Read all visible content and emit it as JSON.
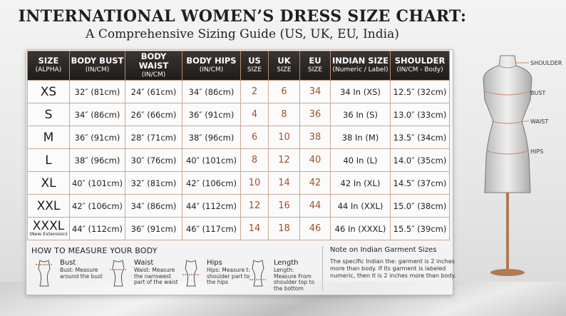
{
  "header": {
    "title": "INTERNATIONAL WOMEN’S DRESS SIZE CHART:",
    "subtitle": "A Comprehensive Sizing Guide (US, UK, EU, India)"
  },
  "table": {
    "headers": [
      [
        "SIZE",
        "(ALPHA)"
      ],
      [
        "BODY BUST",
        "(IN/CM)"
      ],
      [
        "BODY WAIST",
        "(IN/CM)"
      ],
      [
        "BODY HIPS",
        "(IN/CM)"
      ],
      [
        "US",
        "SIZE"
      ],
      [
        "UK",
        "SIZE"
      ],
      [
        "EU",
        "SIZE"
      ],
      [
        "INDIAN SIZE",
        "(Numeric / Label)"
      ],
      [
        "SHOULDER",
        "(IN/CM - Body)"
      ]
    ],
    "rows": [
      [
        "XS",
        "32″ (81cm)",
        "24″ (61cm)",
        "34″ (86cm)",
        "2",
        "6",
        "34",
        "34 In (XS)",
        "12.5″ (32cm)"
      ],
      [
        "S",
        "34″ (86cm)",
        "26″ (66cm)",
        "36″ (91cm)",
        "4",
        "8",
        "36",
        "36 In (S)",
        "13.0″ (33cm)"
      ],
      [
        "M",
        "36″ (91cm)",
        "28″ (71cm)",
        "38″ (96cm)",
        "6",
        "10",
        "38",
        "38 In (M)",
        "13.5″ (34cm)"
      ],
      [
        "L",
        "38″ (96cm)",
        "30″ (76cm)",
        "40″ (101cm)",
        "8",
        "12",
        "40",
        "40 In (L)",
        "14.0″ (35cm)"
      ],
      [
        "XL",
        "40″ (101cm)",
        "32″ (81cm)",
        "42″ (106cm)",
        "10",
        "14",
        "42",
        "42 In (XL)",
        "14.5″ (37cm)"
      ],
      [
        "XXL",
        "42″ (106cm)",
        "34″ (86cm)",
        "44″ (112cm)",
        "12",
        "16",
        "44",
        "44 In (XXL)",
        "15.0″ (38cm)"
      ],
      [
        {
          "text": "XXXL",
          "note": "(New Extension)"
        },
        "44″ (112cm)",
        "36″ (91cm)",
        "46″ (117cm)",
        "14",
        "18",
        "46",
        "46 In (XXXL)",
        "15.5″ (39cm)"
      ]
    ]
  },
  "measure": {
    "title": "HOW TO MEASURE YOUR BODY",
    "items": [
      {
        "name": "Bust",
        "desc": "Bust: Measure around the bust"
      },
      {
        "name": "Waist",
        "desc": "Waist: Measure the narrowest part of the waist"
      },
      {
        "name": "Hips",
        "desc": "Hips: Measure t: shoulder part to the hips"
      },
      {
        "name": "Length",
        "desc": "Length: Measure From shoulder top to the bottom"
      }
    ]
  },
  "note": {
    "title": "Note on Indian Garment Sizes",
    "text": "The specific Indian the: garment is 2 inches more than body. If its garment is labeled numeric, then it is 2 inches more than body."
  },
  "mannequin": {
    "labels": [
      "SHOULDER",
      "BUST",
      "WAIST",
      "HIPS"
    ]
  }
}
